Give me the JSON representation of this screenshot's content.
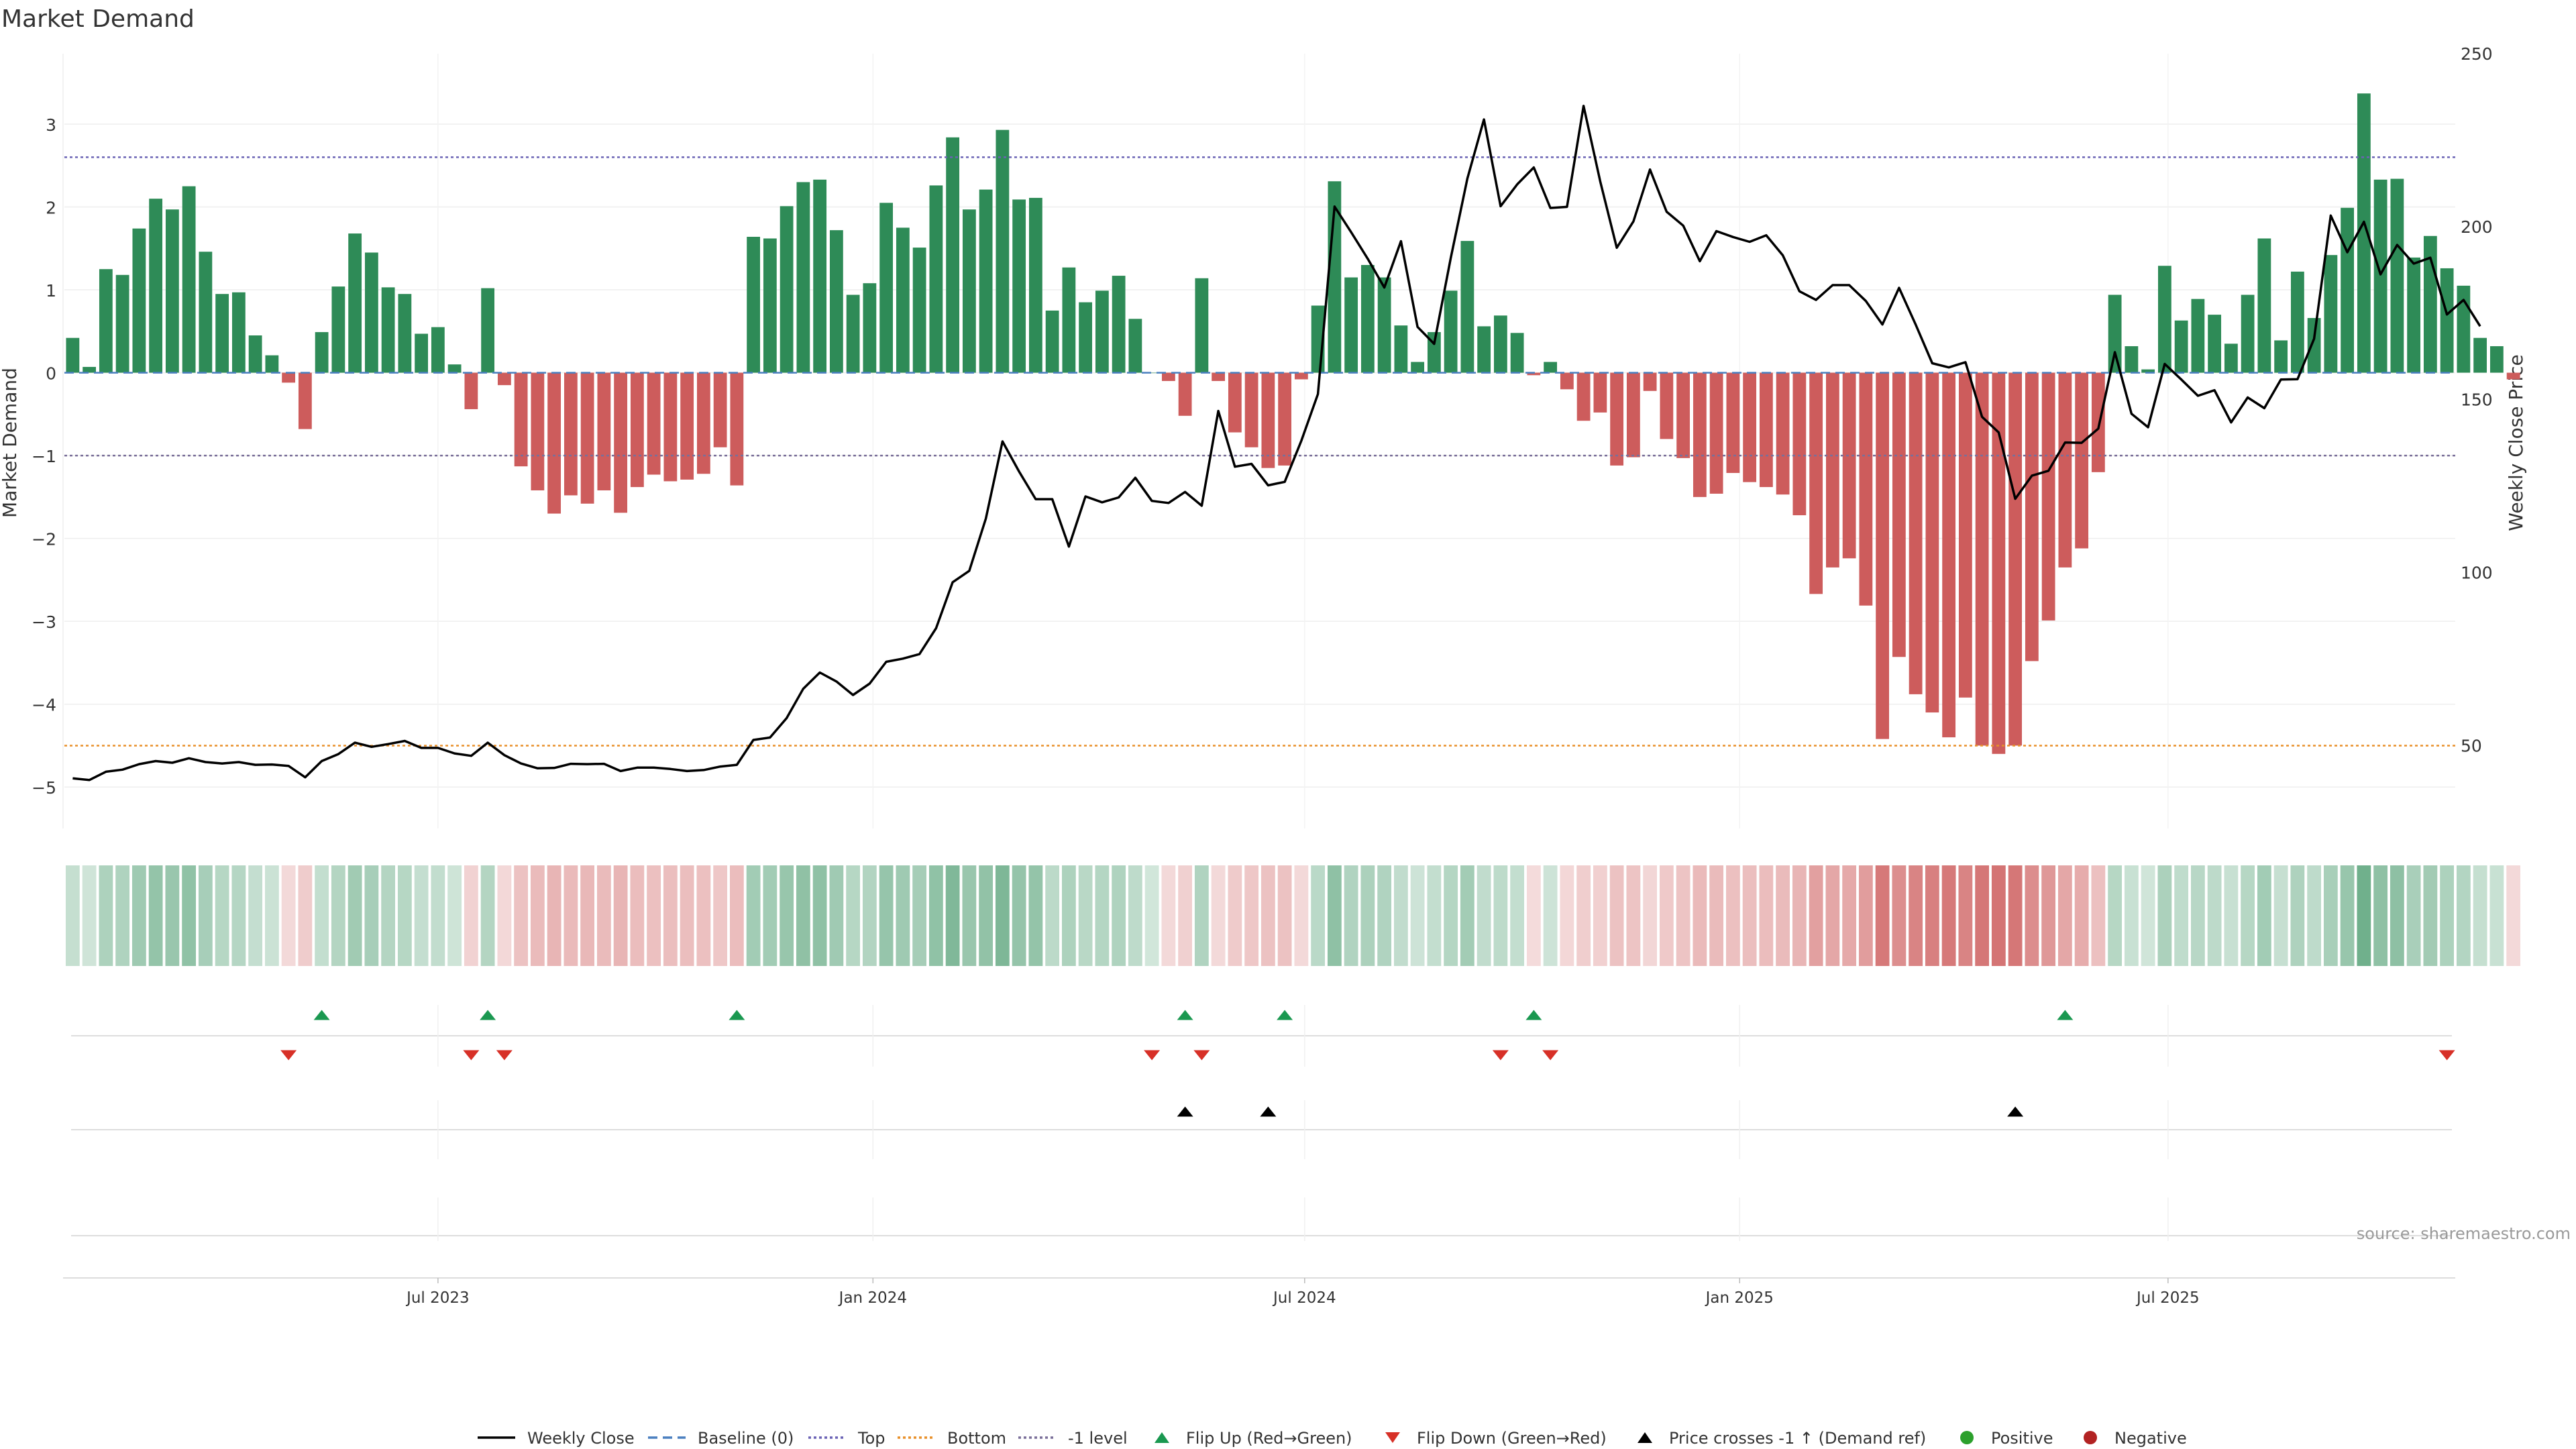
{
  "chart_data": {
    "type": "bar",
    "title": "Market Demand",
    "ylabel": "Market Demand",
    "y2label": "Weekly Close Price",
    "ylim": [
      -5.5,
      3.85
    ],
    "y2lim": [
      26,
      250
    ],
    "yticks": [
      -5,
      -4,
      -3,
      -2,
      -1,
      0,
      1,
      2,
      3
    ],
    "yticks_display": [
      "−5",
      "−4",
      "−3",
      "−2",
      "−1",
      "0",
      "1",
      "2",
      "3"
    ],
    "y2ticks": [
      50,
      100,
      150,
      200,
      250
    ],
    "x_axis": {
      "start": "2023-01-23",
      "weeks": 144
    },
    "x_ticks": [
      {
        "label": "Jul 2023",
        "week": 22
      },
      {
        "label": "Jan 2024",
        "week": 48.2
      },
      {
        "label": "Jul 2024",
        "week": 74.2
      },
      {
        "label": "Jan 2025",
        "week": 100.4
      },
      {
        "label": "Jul 2025",
        "week": 126.2
      }
    ],
    "reference_lines": {
      "baseline": 0,
      "top": 2.6,
      "bottom": -4.5,
      "minus_one": -1
    },
    "demand": [
      0.42,
      0.07,
      1.25,
      1.18,
      1.74,
      2.1,
      1.97,
      2.25,
      1.46,
      0.95,
      0.97,
      0.45,
      0.21,
      -0.12,
      -0.68,
      0.49,
      1.04,
      1.68,
      1.45,
      1.03,
      0.95,
      0.47,
      0.55,
      0.1,
      -0.44,
      1.02,
      -0.15,
      -1.13,
      -1.42,
      -1.7,
      -1.48,
      -1.58,
      -1.42,
      -1.69,
      -1.38,
      -1.23,
      -1.31,
      -1.29,
      -1.22,
      -0.9,
      -1.36,
      1.64,
      1.62,
      2.01,
      2.3,
      2.33,
      1.72,
      0.94,
      1.08,
      2.05,
      1.75,
      1.51,
      2.26,
      2.84,
      1.97,
      2.21,
      2.93,
      2.09,
      2.11,
      0.75,
      1.27,
      0.85,
      0.99,
      1.17,
      0.65,
      0,
      -0.1,
      -0.52,
      1.14,
      -0.1,
      -0.72,
      -0.9,
      -1.15,
      -1.12,
      -0.08,
      0.81,
      2.31,
      1.15,
      1.3,
      1.15,
      0.57,
      0.13,
      0.49,
      0.99,
      1.59,
      0.56,
      0.69,
      0.48,
      -0.03,
      0.13,
      -0.2,
      -0.58,
      -0.48,
      -1.12,
      -1.02,
      -0.22,
      -0.8,
      -1.03,
      -1.5,
      -1.46,
      -1.21,
      -1.32,
      -1.38,
      -1.47,
      -1.72,
      -2.67,
      -2.35,
      -2.24,
      -2.81,
      -4.42,
      -3.43,
      -3.88,
      -4.1,
      -4.4,
      -3.92,
      -4.5,
      -4.6,
      -4.5,
      -3.48,
      -2.99,
      -2.35,
      -2.12,
      -1.2,
      0.94,
      0.32,
      0.04,
      1.29,
      0.63,
      0.89,
      0.7,
      0.35,
      0.94,
      1.62,
      0.39,
      1.22,
      0.66,
      1.42,
      1.99,
      3.37,
      2.33,
      2.34,
      1.39,
      1.65,
      1.26,
      1.05,
      0.42,
      0.32,
      -0.08
    ],
    "weekly_close": [
      40.5,
      40,
      42.4,
      43,
      44.6,
      45.5,
      45,
      46.3,
      45.2,
      44.8,
      45.2,
      44.4,
      44.5,
      44.1,
      40.8,
      45.5,
      47.5,
      50.8,
      49.6,
      50.4,
      51.3,
      49.3,
      49.3,
      47.7,
      47,
      50.8,
      47.2,
      44.8,
      43.4,
      43.5,
      44.7,
      44.6,
      44.7,
      42.6,
      43.6,
      43.6,
      43.2,
      42.6,
      42.9,
      43.9,
      44.4,
      51.6,
      52.3,
      57.9,
      66.4,
      71.1,
      68.5,
      64.6,
      67.9,
      74.2,
      75.1,
      76.4,
      83.9,
      97.2,
      100.5,
      115.6,
      137.9,
      129.2,
      121.2,
      121.2,
      107.5,
      122,
      120.3,
      121.7,
      127.4,
      120.7,
      120.1,
      123.3,
      119.3,
      146.7,
      130.6,
      131.4,
      125.2,
      126.2,
      138.1,
      151.6,
      205.8,
      198.4,
      190.7,
      182.4,
      195.8,
      171,
      166.1,
      190.9,
      213.9,
      231,
      205.9,
      212.2,
      217.1,
      205.4,
      205.7,
      234.9,
      213.1,
      193.9,
      201.5,
      216.5,
      204.3,
      200.3,
      190,
      198.7,
      197,
      195.6,
      197.5,
      191.7,
      181.3,
      178.8,
      183.1,
      183.1,
      178.5,
      171.7,
      182.3,
      171.7,
      160.5,
      159.3,
      160.8,
      145,
      140.5,
      121.3,
      128,
      129.4,
      137.6,
      137.5,
      141.6,
      163.7,
      145.9,
      142,
      160.3,
      155.8,
      151.1,
      152.7,
      143.4,
      150.6,
      147.5,
      155.8,
      155.9,
      167.6,
      203.2,
      192.6,
      201.4,
      186.2,
      194.7,
      189.3,
      191,
      174.6,
      178.8,
      171.2
    ],
    "tile_row_opacity": "derived from demand magnitude",
    "flip_up_weeks": [
      15,
      25,
      40,
      67,
      73,
      88,
      120
    ],
    "flip_down_weeks": [
      13,
      24,
      26,
      65,
      68,
      86,
      89,
      143
    ],
    "price_cross_weeks": [
      67,
      72,
      117
    ],
    "legend": [
      "Weekly Close",
      "Baseline (0)",
      "Top",
      "Bottom",
      "-1 level",
      "Flip Up (Red→Green)",
      "Flip Down (Green→Red)",
      "Price crosses -1 ↑ (Demand ref)",
      "Positive",
      "Negative"
    ],
    "annotation": "source: sharemaestro.com",
    "colors": {
      "positive_bar": "#2e8b57",
      "negative_bar": "#cd5c5c",
      "price_line": "#000000",
      "baseline": "#4a7fbf",
      "top_line": "#6b63b5",
      "bottom_line": "#e8902a",
      "minus_one_line": "#7a6f99",
      "flip_up": "#1a9850",
      "flip_down": "#d73027",
      "price_cross": "#000000",
      "positive_dot": "#2ca02c",
      "negative_dot": "#b22222"
    }
  }
}
